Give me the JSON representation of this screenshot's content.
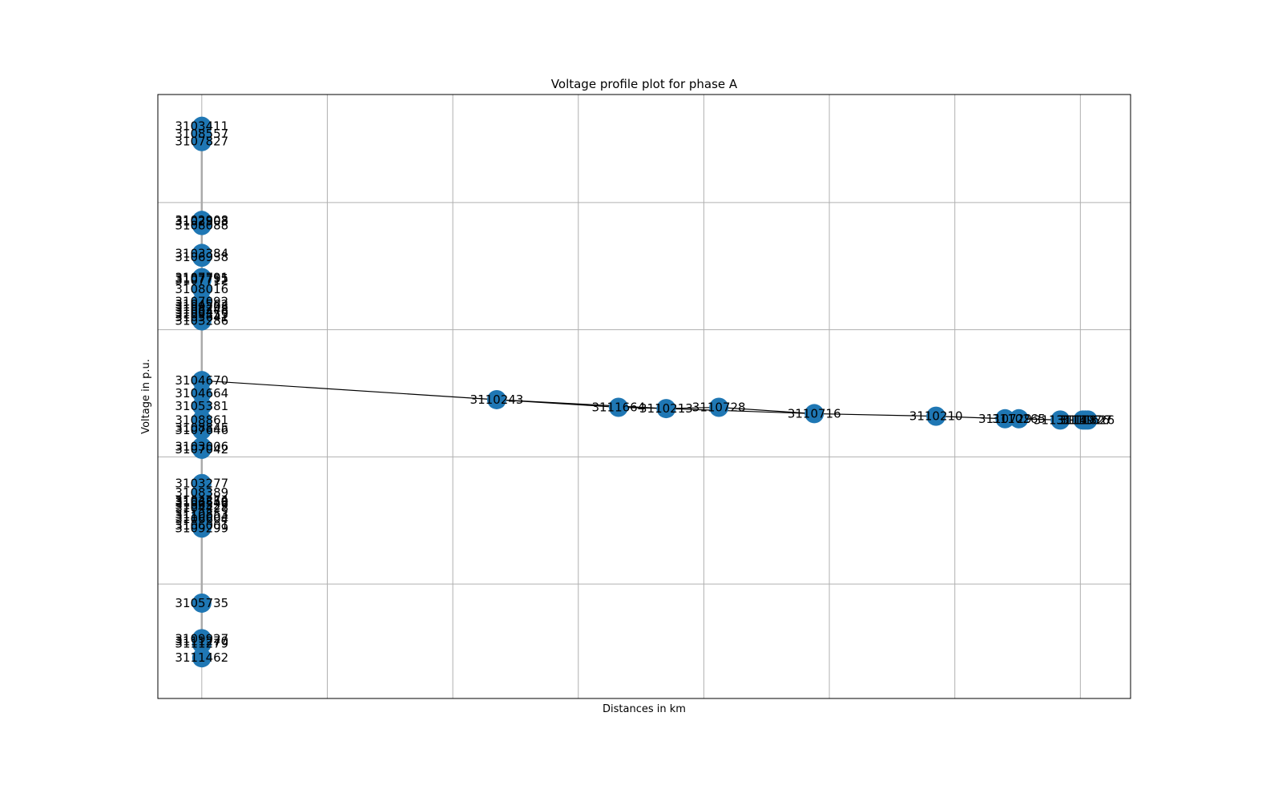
{
  "chart_data": {
    "type": "scatter",
    "title": "Voltage profile plot for phase A",
    "xlabel": "Distances in km",
    "ylabel": "Voltage in p.u.",
    "grid": true,
    "node_color": "#1f77b4",
    "edge_color": "#000000",
    "vertical_edge_color": "#aaaaaa",
    "xlim": [
      -0.35,
      7.4
    ],
    "ylim": [
      -0.9,
      3.85
    ],
    "nodes": [
      {
        "id": "3103411",
        "x": 0,
        "y": 3.6
      },
      {
        "id": "3108557",
        "x": 0,
        "y": 3.54
      },
      {
        "id": "3107827",
        "x": 0,
        "y": 3.48
      },
      {
        "id": "3102908",
        "x": 0,
        "y": 2.86
      },
      {
        "id": "3102903",
        "x": 0,
        "y": 2.85
      },
      {
        "id": "3108088",
        "x": 0,
        "y": 2.82
      },
      {
        "id": "3103384",
        "x": 0,
        "y": 2.6
      },
      {
        "id": "3106938",
        "x": 0,
        "y": 2.57
      },
      {
        "id": "3107791",
        "x": 0,
        "y": 2.41
      },
      {
        "id": "3107795",
        "x": 0,
        "y": 2.4
      },
      {
        "id": "3107712",
        "x": 0,
        "y": 2.39
      },
      {
        "id": "3108016",
        "x": 0,
        "y": 2.32
      },
      {
        "id": "3107092",
        "x": 0,
        "y": 2.22
      },
      {
        "id": "3104562",
        "x": 0,
        "y": 2.2
      },
      {
        "id": "3109203",
        "x": 0,
        "y": 2.18
      },
      {
        "id": "3106248",
        "x": 0,
        "y": 2.16
      },
      {
        "id": "3105476",
        "x": 0,
        "y": 2.14
      },
      {
        "id": "3109355",
        "x": 0,
        "y": 2.12
      },
      {
        "id": "3105641",
        "x": 0,
        "y": 2.1
      },
      {
        "id": "3103286",
        "x": 0,
        "y": 2.07
      },
      {
        "id": "3104670",
        "x": 0,
        "y": 1.6
      },
      {
        "id": "3104664",
        "x": 0,
        "y": 1.5
      },
      {
        "id": "3105381",
        "x": 0,
        "y": 1.4
      },
      {
        "id": "3108861",
        "x": 0,
        "y": 1.29
      },
      {
        "id": "3108845",
        "x": 0,
        "y": 1.23
      },
      {
        "id": "3107646",
        "x": 0,
        "y": 1.21
      },
      {
        "id": "3103006",
        "x": 0,
        "y": 1.08
      },
      {
        "id": "3107042",
        "x": 0,
        "y": 1.06
      },
      {
        "id": "3103277",
        "x": 0,
        "y": 0.79
      },
      {
        "id": "3108389",
        "x": 0,
        "y": 0.72
      },
      {
        "id": "3104274",
        "x": 0,
        "y": 0.66
      },
      {
        "id": "3103859",
        "x": 0,
        "y": 0.65
      },
      {
        "id": "3106548",
        "x": 0,
        "y": 0.64
      },
      {
        "id": "3106329",
        "x": 0,
        "y": 0.62
      },
      {
        "id": "3104428",
        "x": 0,
        "y": 0.6
      },
      {
        "id": "3110853",
        "x": 0,
        "y": 0.55
      },
      {
        "id": "3110004",
        "x": 0,
        "y": 0.53
      },
      {
        "id": "3106604",
        "x": 0,
        "y": 0.51
      },
      {
        "id": "3106001",
        "x": 0,
        "y": 0.46
      },
      {
        "id": "3109299",
        "x": 0,
        "y": 0.44
      },
      {
        "id": "3105735",
        "x": 0,
        "y": -0.15
      },
      {
        "id": "3109927",
        "x": 0,
        "y": -0.43
      },
      {
        "id": "3111270",
        "x": 0,
        "y": -0.45
      },
      {
        "id": "3111279",
        "x": 0,
        "y": -0.47
      },
      {
        "id": "3111462",
        "x": 0,
        "y": -0.58
      },
      {
        "id": "3110243",
        "x": 2.35,
        "y": 1.45
      },
      {
        "id": "3111664",
        "x": 3.32,
        "y": 1.39
      },
      {
        "id": "3110213",
        "x": 3.7,
        "y": 1.38
      },
      {
        "id": "3110728",
        "x": 4.12,
        "y": 1.39
      },
      {
        "id": "3110716",
        "x": 4.88,
        "y": 1.34
      },
      {
        "id": "3110210",
        "x": 5.85,
        "y": 1.32
      },
      {
        "id": "3110729",
        "x": 6.4,
        "y": 1.3
      },
      {
        "id": "3110265",
        "x": 6.51,
        "y": 1.3
      },
      {
        "id": "3113114",
        "x": 6.84,
        "y": 1.29
      },
      {
        "id": "3111976",
        "x": 7.02,
        "y": 1.29
      },
      {
        "id": "3111827",
        "x": 7.04,
        "y": 1.29
      },
      {
        "id": "3111626",
        "x": 7.06,
        "y": 1.29
      }
    ],
    "edges": [
      [
        "3104670",
        "3110243"
      ],
      [
        "3110243",
        "3111664"
      ],
      [
        "3110243",
        "3110213"
      ],
      [
        "3111664",
        "3110213"
      ],
      [
        "3110213",
        "3110728"
      ],
      [
        "3110728",
        "3110716"
      ],
      [
        "3110213",
        "3110716"
      ],
      [
        "3110716",
        "3110210"
      ],
      [
        "3110210",
        "3110729"
      ],
      [
        "3110729",
        "3110265"
      ],
      [
        "3110265",
        "3113114"
      ],
      [
        "3113114",
        "3111976"
      ],
      [
        "3111976",
        "3111827"
      ],
      [
        "3111827",
        "3111626"
      ]
    ]
  }
}
